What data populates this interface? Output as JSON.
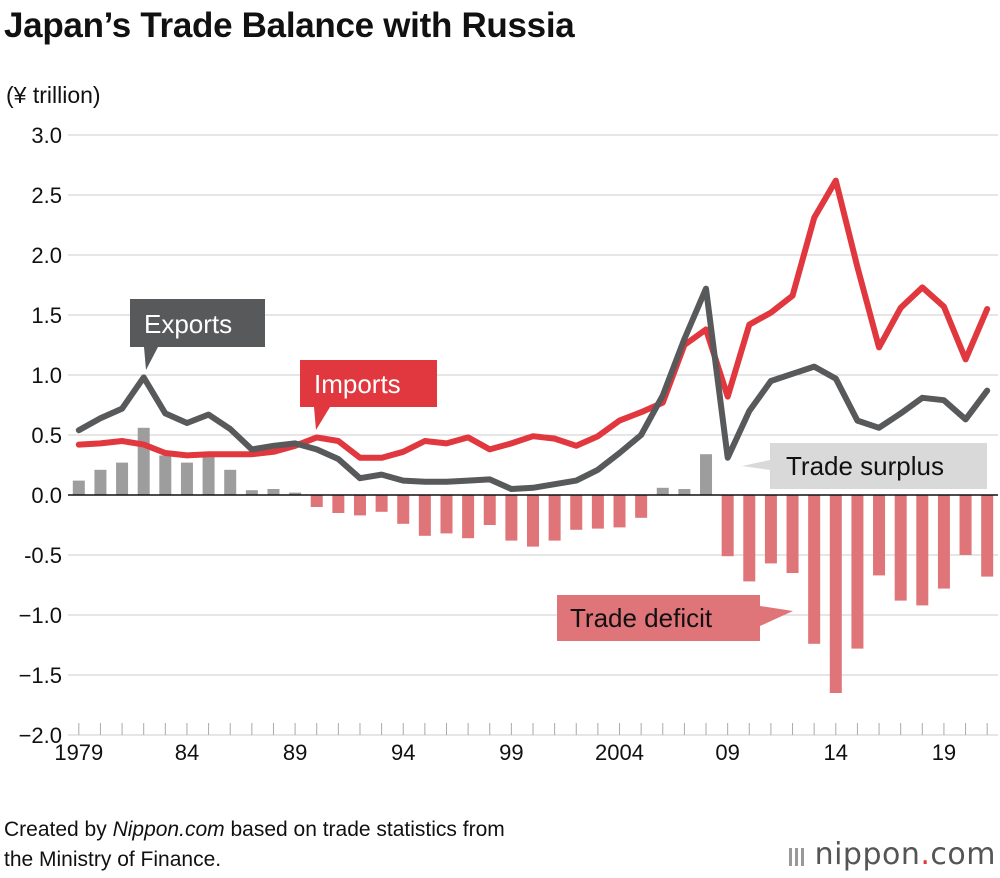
{
  "title": "Japan’s Trade Balance with Russia",
  "unit": "(¥ trillion)",
  "credit": {
    "prefix": "Created by ",
    "brand": "Nippon.com",
    "suffix": " based on trade statistics from",
    "line2": "the Ministry of Finance."
  },
  "logo": {
    "name": "nippon",
    "dot": ".",
    "tld": "com"
  },
  "colors": {
    "exports": "#58595b",
    "imports": "#e0383e",
    "surplus": "#9d9d9d",
    "deficit": "#df7479",
    "axis": "#111111",
    "grid": "#cccccc"
  },
  "chart_data": {
    "type": "line+bar",
    "title": "Japan’s Trade Balance with Russia",
    "ylabel": "(¥ trillion)",
    "ylim": [
      -2.0,
      3.0
    ],
    "yticks": [
      "3.0",
      "2.5",
      "2.0",
      "1.5",
      "1.0",
      "0.5",
      "0.0",
      "-0.5",
      "−1.0",
      "−1.5",
      "−2.0"
    ],
    "ytick_values": [
      3.0,
      2.5,
      2.0,
      1.5,
      1.0,
      0.5,
      0.0,
      -0.5,
      -1.0,
      -1.5,
      -2.0
    ],
    "x": [
      1979,
      1980,
      1981,
      1982,
      1983,
      1984,
      1985,
      1986,
      1987,
      1988,
      1989,
      1990,
      1991,
      1992,
      1993,
      1994,
      1995,
      1996,
      1997,
      1998,
      1999,
      2000,
      2001,
      2002,
      2003,
      2004,
      2005,
      2006,
      2007,
      2008,
      2009,
      2010,
      2011,
      2012,
      2013,
      2014,
      2015,
      2016,
      2017,
      2018,
      2019,
      2020,
      2021
    ],
    "xtick_labels": [
      {
        "year": 1979,
        "label": "1979"
      },
      {
        "year": 1984,
        "label": "84"
      },
      {
        "year": 1989,
        "label": "89"
      },
      {
        "year": 1994,
        "label": "94"
      },
      {
        "year": 1999,
        "label": "99"
      },
      {
        "year": 2004,
        "label": "2004"
      },
      {
        "year": 2009,
        "label": "09"
      },
      {
        "year": 2014,
        "label": "14"
      },
      {
        "year": 2019,
        "label": "19"
      }
    ],
    "series": [
      {
        "name": "Exports",
        "kind": "line",
        "values": [
          0.54,
          0.64,
          0.72,
          0.98,
          0.68,
          0.6,
          0.67,
          0.55,
          0.38,
          0.41,
          0.43,
          0.38,
          0.3,
          0.14,
          0.17,
          0.12,
          0.11,
          0.11,
          0.12,
          0.13,
          0.05,
          0.06,
          0.09,
          0.12,
          0.21,
          0.35,
          0.5,
          0.83,
          1.3,
          1.72,
          0.31,
          0.7,
          0.95,
          1.01,
          1.07,
          0.97,
          0.62,
          0.56,
          0.68,
          0.81,
          0.79,
          0.63,
          0.87
        ]
      },
      {
        "name": "Imports",
        "kind": "line",
        "values": [
          0.42,
          0.43,
          0.45,
          0.42,
          0.35,
          0.33,
          0.34,
          0.34,
          0.34,
          0.36,
          0.41,
          0.48,
          0.45,
          0.31,
          0.31,
          0.36,
          0.45,
          0.43,
          0.48,
          0.38,
          0.43,
          0.49,
          0.47,
          0.41,
          0.49,
          0.62,
          0.69,
          0.77,
          1.25,
          1.38,
          0.82,
          1.42,
          1.52,
          1.66,
          2.31,
          2.62,
          1.9,
          1.23,
          1.56,
          1.73,
          1.57,
          1.13,
          1.55
        ]
      },
      {
        "name": "Trade balance",
        "kind": "bar",
        "values": [
          0.12,
          0.21,
          0.27,
          0.56,
          0.33,
          0.27,
          0.33,
          0.21,
          0.04,
          0.05,
          0.02,
          -0.1,
          -0.15,
          -0.17,
          -0.14,
          -0.24,
          -0.34,
          -0.32,
          -0.36,
          -0.25,
          -0.38,
          -0.43,
          -0.38,
          -0.29,
          -0.28,
          -0.27,
          -0.19,
          0.06,
          0.05,
          0.34,
          -0.51,
          -0.72,
          -0.57,
          -0.65,
          -1.24,
          -1.65,
          -1.28,
          -0.67,
          -0.88,
          -0.92,
          -0.78,
          -0.5,
          -0.68
        ]
      }
    ],
    "annotations": [
      {
        "id": "exports",
        "text": "Exports"
      },
      {
        "id": "imports",
        "text": "Imports"
      },
      {
        "id": "surplus",
        "text": "Trade surplus"
      },
      {
        "id": "deficit",
        "text": "Trade deficit"
      }
    ]
  }
}
